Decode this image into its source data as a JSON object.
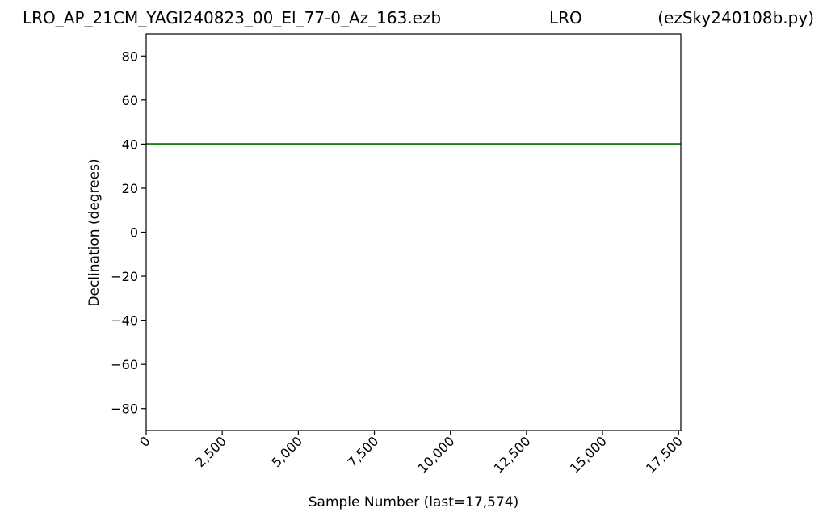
{
  "header": {
    "filename": "LRO_AP_21CM_YAGI240823_00_El_77-0_Az_163.ezb",
    "observatory": "LRO",
    "program": "(ezSky240108b.py)"
  },
  "chart_data": {
    "type": "line",
    "title": "LRO_AP_21CM_YAGI240823_00_El_77-0_Az_163.ezb LRO (ezSky240108b.py)",
    "xlabel": "Sample Number (last=17,574)",
    "ylabel": "Declination (degrees)",
    "xlim": [
      0,
      17574
    ],
    "ylim": [
      -90,
      90
    ],
    "x_ticks": [
      0,
      2500,
      5000,
      7500,
      10000,
      12500,
      15000,
      17500
    ],
    "x_tick_labels": [
      "0",
      "2,500",
      "5,000",
      "7,500",
      "10,000",
      "12,500",
      "15,000",
      "17,500"
    ],
    "y_ticks": [
      80,
      60,
      40,
      20,
      0,
      -20,
      -40,
      -60,
      -80
    ],
    "y_tick_labels": [
      "80",
      "60",
      "40",
      "20",
      "0",
      "−20",
      "−40",
      "−60",
      "−80"
    ],
    "grid": false,
    "series": [
      {
        "color": "#1a7f1a",
        "x": [
          0,
          17574
        ],
        "y": [
          40,
          40
        ]
      }
    ]
  }
}
